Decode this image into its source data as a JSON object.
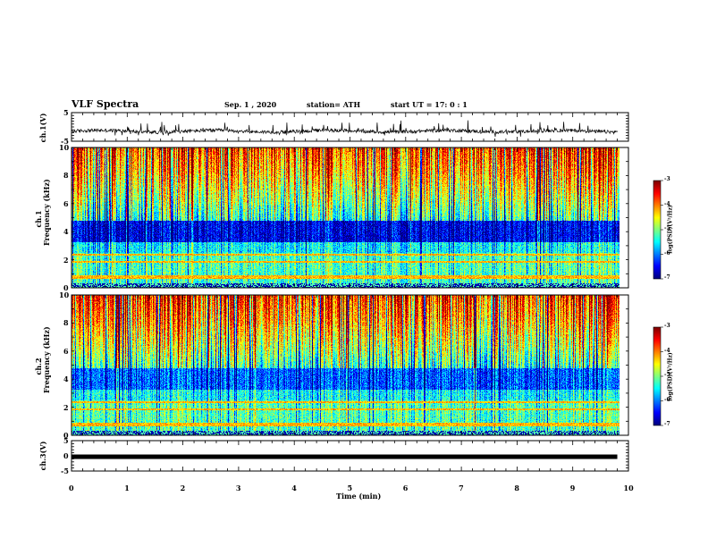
{
  "header": {
    "title": "VLF Spectra",
    "date": "Sep. 1 , 2020",
    "station": "station= ATH",
    "start": "start UT = 17: 0 : 1"
  },
  "chart_data": [
    {
      "type": "line",
      "panel": "ch1-waveform",
      "ylabel": "ch.1(V)",
      "ylim": [
        -5,
        5
      ],
      "yticks": [
        "5",
        "-5"
      ],
      "xlim": [
        0,
        10
      ],
      "description_level": -1.5
    },
    {
      "type": "heatmap",
      "panel": "ch1-spectrogram",
      "ylabel": "ch.1\nFrequency (kHz)",
      "ylabel_top": "ch.1",
      "ylabel_bottom": "Frequency (kHz)",
      "ylim": [
        0,
        10
      ],
      "yticks": [
        "0",
        "2",
        "4",
        "6",
        "8",
        "10"
      ],
      "xlim": [
        0,
        9.8
      ],
      "colorbar": {
        "label": "log(PSD)(V²/Hz)",
        "range": [
          -7,
          -3
        ],
        "ticks": [
          "-3",
          "-4",
          "-5",
          "-6",
          "-7"
        ]
      }
    },
    {
      "type": "heatmap",
      "panel": "ch2-spectrogram",
      "ylabel_top": "ch.2",
      "ylabel_bottom": "Frequency (kHz)",
      "ylim": [
        0,
        10
      ],
      "yticks": [
        "0",
        "2",
        "4",
        "6",
        "8",
        "10"
      ],
      "xlim": [
        0,
        9.8
      ],
      "colorbar": {
        "label": "log(PSD)(V²/Hz)",
        "range": [
          -7,
          -3
        ],
        "ticks": [
          "-3",
          "-4",
          "-5",
          "-6",
          "-7"
        ]
      }
    },
    {
      "type": "line",
      "panel": "ch3-waveform",
      "ylabel": "ch.3(V)",
      "ylim": [
        -5,
        5
      ],
      "yticks": [
        "5",
        "0",
        "-5"
      ],
      "level": -0.3,
      "xlim": [
        0,
        10
      ]
    }
  ],
  "xaxis": {
    "label": "Time (min)",
    "ticks": [
      "0",
      "1",
      "2",
      "3",
      "4",
      "5",
      "6",
      "7",
      "8",
      "9",
      "10"
    ],
    "range": [
      0,
      10
    ]
  },
  "colors": {
    "line": "#000000",
    "background": "#ffffff"
  }
}
